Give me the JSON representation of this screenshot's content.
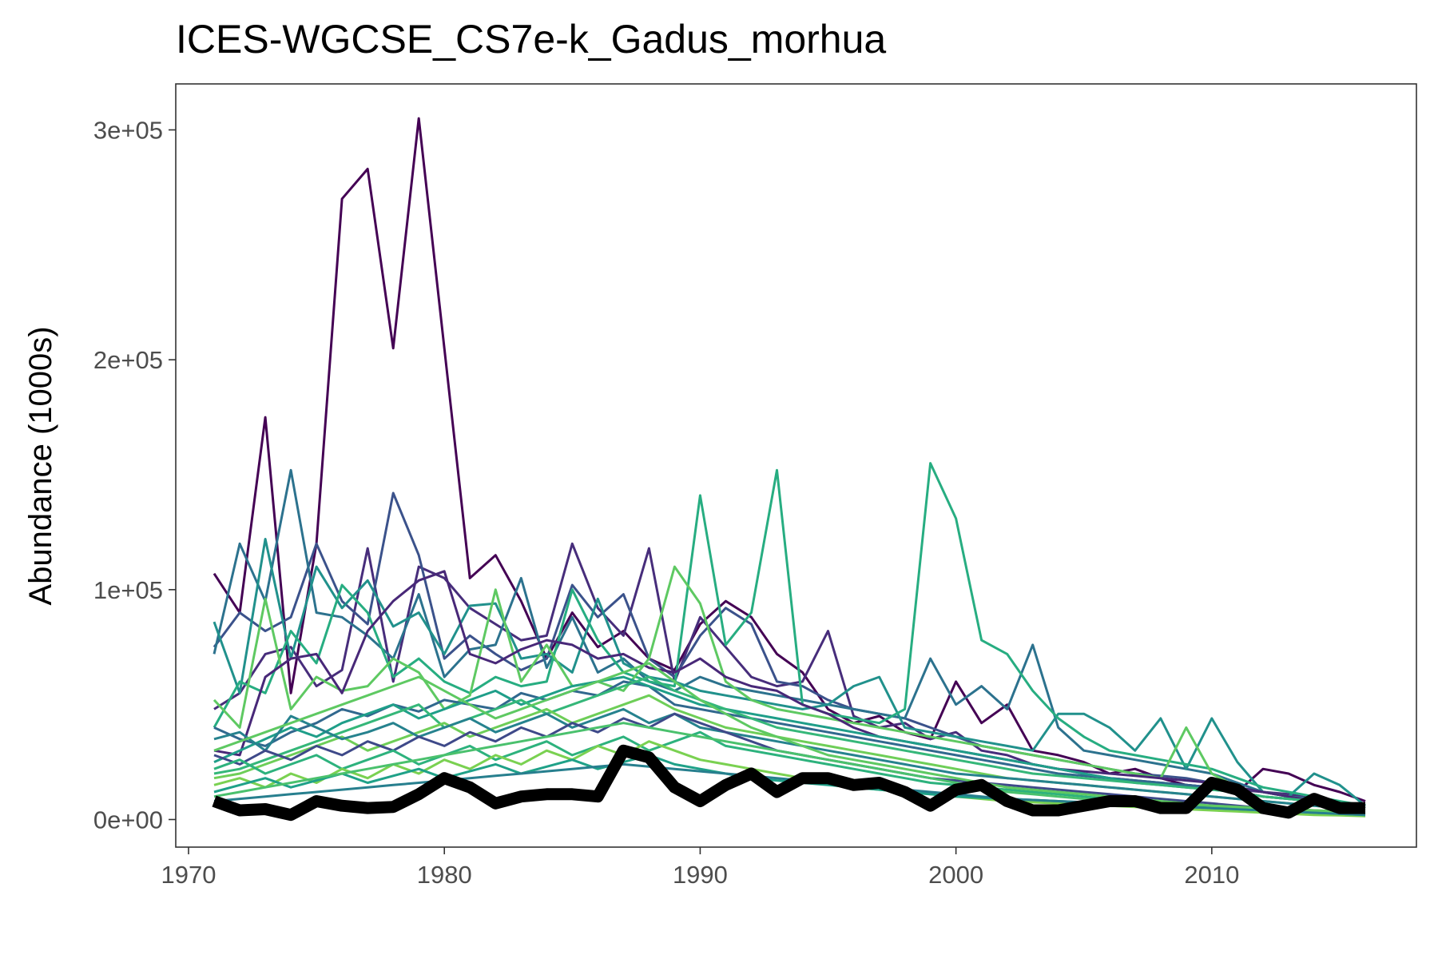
{
  "chart_data": {
    "type": "line",
    "title": "ICES-WGCSE_CS7e-k_Gadus_morhua",
    "xlabel": "",
    "ylabel": "Abundance (1000s)",
    "xlim": [
      1969.5,
      2018
    ],
    "ylim": [
      -12000,
      320000
    ],
    "x_ticks": [
      1970,
      1980,
      1990,
      2000,
      2010
    ],
    "x_tick_labels": [
      "1970",
      "1980",
      "1990",
      "2000",
      "2010"
    ],
    "y_ticks": [
      0,
      100000,
      200000,
      300000
    ],
    "y_tick_labels": [
      "0e+00",
      "1e+05",
      "2e+05",
      "3e+05"
    ],
    "grid": false,
    "legend": "none",
    "x": [
      1971,
      1972,
      1973,
      1974,
      1975,
      1976,
      1977,
      1978,
      1979,
      1980,
      1981,
      1982,
      1983,
      1984,
      1985,
      1986,
      1987,
      1988,
      1989,
      1990,
      1991,
      1992,
      1993,
      1994,
      1995,
      1996,
      1997,
      1998,
      1999,
      2000,
      2001,
      2002,
      2003,
      2004,
      2005,
      2006,
      2007,
      2008,
      2009,
      2010,
      2011,
      2012,
      2013,
      2014,
      2015,
      2016
    ],
    "series": [
      {
        "color": "#440154",
        "values": [
          107000,
          90000,
          175000,
          55000,
          120000,
          270000,
          283000,
          205000,
          305000,
          205000,
          105000,
          115000,
          95000,
          70000,
          90000,
          75000,
          82000,
          70000,
          65000,
          85000,
          95000,
          88000,
          72000,
          64000,
          48000,
          42000,
          45000,
          38000,
          35000,
          60000,
          42000,
          50000,
          30000,
          28000,
          25000,
          20000,
          22000,
          18000,
          15000,
          14000,
          12000,
          22000,
          20000,
          15000,
          12000,
          8000
        ]
      },
      {
        "color": "#472d7b",
        "values": [
          48000,
          55000,
          72000,
          75000,
          58000,
          65000,
          118000,
          60000,
          110000,
          105000,
          92000,
          85000,
          78000,
          80000,
          120000,
          92000,
          80000,
          118000,
          60000,
          88000,
          75000,
          62000,
          58000,
          60000,
          82000,
          45000,
          40000,
          42000,
          35000,
          38000,
          30000,
          28000,
          24000,
          22000,
          20000,
          18000,
          17000,
          16000,
          15000,
          14000,
          13000,
          12000,
          11000,
          9000,
          7000,
          5000
        ]
      },
      {
        "color": "#3b528b",
        "values": [
          75000,
          90000,
          82000,
          88000,
          120000,
          95000,
          85000,
          142000,
          115000,
          70000,
          80000,
          72000,
          65000,
          70000,
          102000,
          88000,
          98000,
          70000,
          62000,
          80000,
          92000,
          85000,
          60000,
          58000,
          52000,
          48000,
          46000,
          44000,
          40000,
          36000,
          32000,
          30000,
          28000,
          26000,
          24000,
          22000,
          20000,
          19000,
          18000,
          16000,
          14000,
          12000,
          10000,
          8000,
          6000,
          5000
        ]
      },
      {
        "color": "#2c728e",
        "values": [
          72000,
          120000,
          95000,
          152000,
          90000,
          88000,
          80000,
          70000,
          98000,
          62000,
          74000,
          76000,
          105000,
          66000,
          88000,
          64000,
          70000,
          60000,
          56000,
          62000,
          58000,
          56000,
          54000,
          52000,
          50000,
          48000,
          46000,
          44000,
          70000,
          50000,
          58000,
          48000,
          76000,
          40000,
          30000,
          28000,
          26000,
          24000,
          22000,
          20000,
          16000,
          12000,
          10000,
          9000,
          7000,
          5000
        ]
      },
      {
        "color": "#21918c",
        "values": [
          86000,
          55000,
          122000,
          70000,
          110000,
          92000,
          104000,
          84000,
          90000,
          72000,
          93000,
          94000,
          70000,
          72000,
          64000,
          96000,
          68000,
          62000,
          60000,
          56000,
          54000,
          52000,
          50000,
          48000,
          50000,
          58000,
          62000,
          40000,
          38000,
          36000,
          34000,
          32000,
          30000,
          46000,
          46000,
          40000,
          30000,
          44000,
          22000,
          44000,
          25000,
          12000,
          10000,
          20000,
          15000,
          6000
        ]
      },
      {
        "color": "#27ad81",
        "values": [
          40000,
          60000,
          55000,
          82000,
          68000,
          102000,
          90000,
          62000,
          70000,
          60000,
          55000,
          62000,
          58000,
          60000,
          100000,
          78000,
          64000,
          60000,
          58000,
          141000,
          76000,
          90000,
          152000,
          50000,
          46000,
          44000,
          42000,
          48000,
          155000,
          131000,
          78000,
          72000,
          56000,
          44000,
          36000,
          30000,
          28000,
          26000,
          24000,
          22000,
          18000,
          14000,
          12000,
          10000,
          8000,
          6000
        ]
      },
      {
        "color": "#5ec962",
        "values": [
          52000,
          40000,
          96000,
          48000,
          62000,
          56000,
          58000,
          70000,
          64000,
          48000,
          54000,
          100000,
          60000,
          76000,
          58000,
          60000,
          56000,
          70000,
          110000,
          94000,
          60000,
          52000,
          48000,
          46000,
          44000,
          42000,
          40000,
          38000,
          36000,
          34000,
          32000,
          30000,
          28000,
          26000,
          24000,
          22000,
          20000,
          18000,
          40000,
          20000,
          14000,
          12000,
          10000,
          8000,
          6000,
          5000
        ]
      },
      {
        "color": "#31688e",
        "values": [
          40000,
          35000,
          32000,
          38000,
          42000,
          48000,
          45000,
          50000,
          47000,
          52000,
          50000,
          48000,
          55000,
          52000,
          56000,
          54000,
          60000,
          58000,
          50000,
          48000,
          46000,
          44000,
          42000,
          40000,
          38000,
          36000,
          34000,
          32000,
          30000,
          28000,
          26000,
          24000,
          22000,
          20000,
          19000,
          18000,
          17000,
          16000,
          15000,
          14000,
          12000,
          10000,
          9000,
          8000,
          7000,
          5000
        ]
      },
      {
        "color": "#482878",
        "values": [
          30000,
          28000,
          62000,
          70000,
          72000,
          55000,
          82000,
          95000,
          104000,
          108000,
          72000,
          68000,
          74000,
          78000,
          76000,
          70000,
          72000,
          66000,
          64000,
          70000,
          62000,
          58000,
          56000,
          50000,
          46000,
          40000,
          36000,
          34000,
          32000,
          30000,
          28000,
          26000,
          24000,
          22000,
          21000,
          20000,
          19000,
          18000,
          17000,
          16000,
          14000,
          12000,
          10000,
          8000,
          6000,
          5000
        ]
      },
      {
        "color": "#1f9e89",
        "values": [
          25000,
          30000,
          35000,
          40000,
          36000,
          42000,
          46000,
          50000,
          44000,
          48000,
          52000,
          56000,
          50000,
          54000,
          58000,
          60000,
          62000,
          58000,
          54000,
          50000,
          48000,
          46000,
          44000,
          42000,
          40000,
          38000,
          36000,
          34000,
          32000,
          30000,
          28000,
          26000,
          24000,
          22000,
          20000,
          18000,
          16000,
          15000,
          14000,
          13000,
          12000,
          10000,
          9000,
          8000,
          6000,
          5000
        ]
      },
      {
        "color": "#35b779",
        "values": [
          20000,
          22000,
          26000,
          30000,
          34000,
          38000,
          42000,
          46000,
          50000,
          40000,
          44000,
          48000,
          52000,
          46000,
          50000,
          54000,
          58000,
          62000,
          56000,
          52000,
          48000,
          44000,
          40000,
          38000,
          36000,
          34000,
          32000,
          30000,
          28000,
          26000,
          24000,
          22000,
          20000,
          19000,
          18000,
          17000,
          16000,
          15000,
          14000,
          13000,
          12000,
          10000,
          9000,
          8000,
          6000,
          5000
        ]
      },
      {
        "color": "#6ece58",
        "values": [
          18000,
          20000,
          24000,
          28000,
          32000,
          36000,
          30000,
          34000,
          38000,
          42000,
          36000,
          40000,
          44000,
          48000,
          42000,
          46000,
          50000,
          54000,
          48000,
          44000,
          40000,
          38000,
          36000,
          34000,
          32000,
          30000,
          28000,
          26000,
          24000,
          22000,
          20000,
          18000,
          17000,
          16000,
          15000,
          14000,
          13000,
          12000,
          11000,
          10000,
          9000,
          8000,
          7000,
          6000,
          5000,
          4000
        ]
      },
      {
        "color": "#26828e",
        "values": [
          35000,
          38000,
          30000,
          45000,
          40000,
          35000,
          38000,
          42000,
          36000,
          40000,
          44000,
          38000,
          42000,
          46000,
          40000,
          44000,
          48000,
          42000,
          46000,
          40000,
          38000,
          36000,
          34000,
          32000,
          30000,
          28000,
          26000,
          24000,
          22000,
          20000,
          19000,
          18000,
          17000,
          16000,
          15000,
          14000,
          13000,
          12000,
          11000,
          10000,
          9000,
          8000,
          7000,
          6000,
          5000,
          4000
        ]
      },
      {
        "color": "#3e4989",
        "values": [
          28000,
          24000,
          30000,
          26000,
          32000,
          28000,
          34000,
          30000,
          36000,
          32000,
          38000,
          34000,
          40000,
          36000,
          42000,
          38000,
          44000,
          40000,
          46000,
          42000,
          38000,
          34000,
          30000,
          28000,
          26000,
          24000,
          22000,
          20000,
          18000,
          17000,
          16000,
          15000,
          14000,
          13000,
          12000,
          11000,
          10000,
          9000,
          8000,
          7000,
          6000,
          5000,
          4000,
          3500,
          3000,
          2500
        ]
      },
      {
        "color": "#2db27d",
        "values": [
          22000,
          26000,
          20000,
          24000,
          28000,
          22000,
          26000,
          30000,
          24000,
          28000,
          32000,
          26000,
          30000,
          34000,
          28000,
          32000,
          36000,
          30000,
          34000,
          38000,
          32000,
          30000,
          28000,
          26000,
          24000,
          22000,
          20000,
          18000,
          16000,
          15000,
          14000,
          13000,
          12000,
          11000,
          10000,
          9000,
          8000,
          7000,
          6000,
          5000,
          4500,
          4000,
          3500,
          3000,
          2500,
          2000
        ]
      },
      {
        "color": "#7ad151",
        "values": [
          15000,
          18000,
          14000,
          20000,
          16000,
          22000,
          18000,
          24000,
          20000,
          26000,
          22000,
          28000,
          24000,
          30000,
          26000,
          32000,
          28000,
          34000,
          30000,
          26000,
          24000,
          22000,
          20000,
          18000,
          16000,
          14000,
          13000,
          12000,
          11000,
          10000,
          9000,
          8000,
          7500,
          7000,
          6500,
          6000,
          5500,
          5000,
          4500,
          4000,
          3500,
          3000,
          2500,
          2000,
          1800,
          1500
        ]
      },
      {
        "color": "#1fa188",
        "values": [
          12000,
          15000,
          18000,
          14000,
          17000,
          20000,
          16000,
          19000,
          22000,
          18000,
          21000,
          24000,
          20000,
          23000,
          26000,
          22000,
          25000,
          28000,
          24000,
          22000,
          20000,
          18000,
          17000,
          16000,
          15000,
          14000,
          13000,
          12000,
          11000,
          10000,
          9500,
          9000,
          8500,
          8000,
          7500,
          7000,
          6500,
          6000,
          5500,
          5000,
          4500,
          4000,
          3500,
          3000,
          2500,
          2000
        ]
      },
      {
        "color": "#4ac16d",
        "values": [
          10000,
          12000,
          14000,
          16000,
          18000,
          20000,
          22000,
          24000,
          26000,
          28000,
          30000,
          32000,
          34000,
          36000,
          38000,
          40000,
          42000,
          40000,
          38000,
          36000,
          34000,
          32000,
          30000,
          28000,
          26000,
          24000,
          22000,
          20000,
          18000,
          16000,
          14000,
          12000,
          11000,
          10000,
          9000,
          8000,
          7500,
          7000,
          6500,
          6000,
          5500,
          5000,
          4500,
          4000,
          3500,
          3000
        ]
      },
      {
        "color": "#277f8e",
        "values": [
          8000,
          9000,
          10000,
          11000,
          12000,
          13000,
          14000,
          15000,
          16000,
          17000,
          18000,
          19000,
          20000,
          21000,
          22000,
          23000,
          24000,
          23000,
          22000,
          21000,
          20000,
          19000,
          18000,
          17000,
          16000,
          15000,
          14000,
          13000,
          12000,
          11000,
          10000,
          9000,
          8500,
          8000,
          7500,
          7000,
          6500,
          6000,
          5500,
          5000,
          4500,
          4000,
          3500,
          3000,
          2500,
          2000
        ]
      },
      {
        "color": "#5ec962",
        "values": [
          30000,
          34000,
          38000,
          42000,
          46000,
          50000,
          54000,
          58000,
          62000,
          56000,
          50000,
          44000,
          48000,
          52000,
          56000,
          60000,
          64000,
          68000,
          60000,
          52000,
          46000,
          40000,
          36000,
          32000,
          28000,
          26000,
          24000,
          22000,
          20000,
          18000,
          16000,
          14000,
          13000,
          12000,
          11000,
          10000,
          9000,
          8000,
          7000,
          6000,
          5500,
          5000,
          4500,
          4000,
          3500,
          3000
        ]
      }
    ],
    "highlight_series": {
      "color": "#000000",
      "values": [
        8000,
        4000,
        4500,
        2000,
        8000,
        6000,
        5000,
        5500,
        11000,
        18000,
        14000,
        7000,
        10000,
        11000,
        11000,
        10000,
        30000,
        27000,
        14000,
        8000,
        15000,
        20000,
        12000,
        18000,
        18000,
        15000,
        16000,
        12000,
        6000,
        13000,
        15000,
        8000,
        4000,
        4000,
        6000,
        8000,
        8000,
        5000,
        5000,
        16000,
        13000,
        5000,
        3000,
        9000,
        5000,
        5000
      ]
    }
  }
}
